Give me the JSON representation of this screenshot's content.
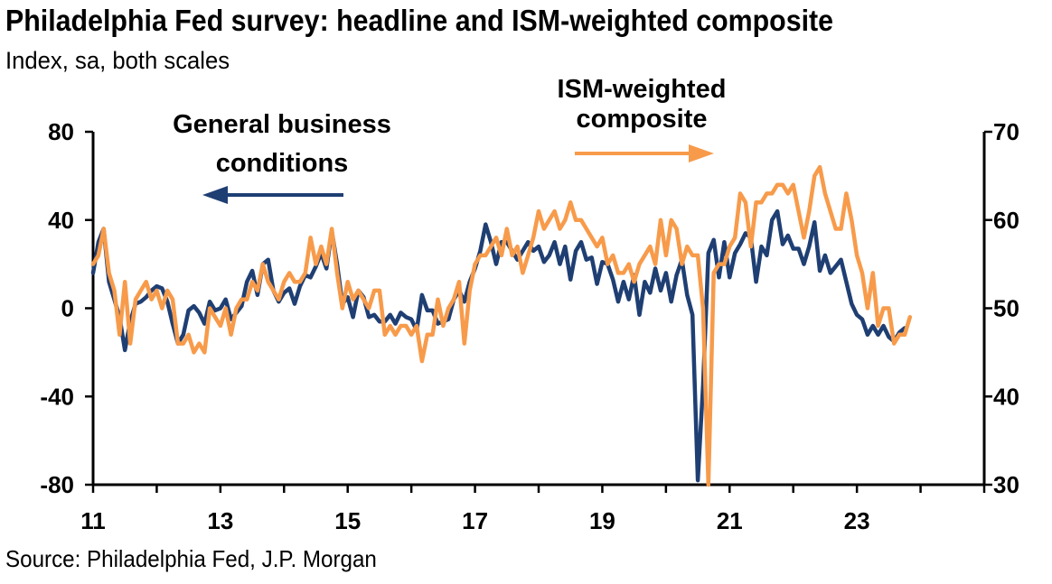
{
  "chart_data": {
    "type": "line",
    "title": "Philadelphia Fed survey: headline and ISM-weighted composite",
    "subtitle": "Index, sa, both scales",
    "source": "Source: Philadelphia Fed, J.P. Morgan",
    "x_tick_labels": [
      "11",
      "13",
      "15",
      "17",
      "19",
      "21",
      "23"
    ],
    "xlim": [
      "2011-01",
      "2024-12"
    ],
    "left_axis": {
      "ylim": [
        -80,
        80
      ],
      "tick_labels": [
        "-80",
        "-40",
        "0",
        "40",
        "80"
      ]
    },
    "right_axis": {
      "ylim": [
        30,
        70
      ],
      "tick_labels": [
        "30",
        "40",
        "50",
        "60",
        "70"
      ]
    },
    "annotations": [
      {
        "lines": [
          "General business",
          "conditions"
        ],
        "arrow": "left",
        "series": "general"
      },
      {
        "lines": [
          "ISM-weighted",
          "composite"
        ],
        "arrow": "right",
        "series": "ism"
      }
    ],
    "grid": false,
    "legend": "none",
    "start_month": "2011-01",
    "series": [
      {
        "name": "General business conditions",
        "axis": "left",
        "color": "#1f3f73",
        "values": [
          16,
          30,
          36,
          12,
          4,
          -4,
          -19,
          -6,
          2,
          3,
          5,
          8,
          10,
          9,
          3,
          -7,
          -16,
          -12,
          -1,
          1,
          -2,
          -7,
          3,
          -1,
          0,
          4,
          -5,
          -2,
          1,
          12,
          17,
          6,
          20,
          22,
          8,
          3,
          7,
          9,
          2,
          10,
          15,
          14,
          19,
          25,
          18,
          35,
          20,
          2,
          5,
          -4,
          8,
          5,
          -4,
          -3,
          -6,
          -6,
          -3,
          -7,
          -2,
          -4,
          -5,
          -10,
          6,
          -1,
          -1,
          -7,
          -6,
          -5,
          4,
          8,
          3,
          12,
          18,
          26,
          38,
          30,
          20,
          30,
          30,
          26,
          22,
          26,
          30,
          26,
          28,
          21,
          24,
          30,
          20,
          28,
          13,
          26,
          30,
          22,
          23,
          11,
          21,
          20,
          13,
          3,
          12,
          4,
          15,
          -3,
          12,
          7,
          18,
          8,
          16,
          3,
          15,
          22,
          6,
          -3,
          -78,
          -35,
          25,
          31,
          14,
          30,
          14,
          25,
          29,
          34,
          32,
          12,
          28,
          24,
          40,
          44,
          29,
          33,
          27,
          27,
          20,
          28,
          39,
          17,
          24,
          16,
          19,
          22,
          12,
          2,
          -3,
          -5,
          -12,
          -8,
          -12,
          -8,
          -13,
          -15,
          -11,
          -9
        ]
      },
      {
        "name": "ISM-weighted composite",
        "axis": "right",
        "color": "#f79b4b",
        "values": [
          55,
          56,
          59,
          54,
          52,
          47,
          53,
          46,
          51,
          52,
          53,
          51,
          52,
          50,
          52,
          51,
          46,
          46,
          47,
          45,
          46,
          45,
          50,
          49,
          48,
          50,
          47,
          50,
          51,
          51,
          53,
          52,
          55,
          53,
          52,
          51,
          53,
          54,
          53,
          53,
          54,
          58,
          55,
          57,
          55,
          59,
          54,
          50,
          53,
          51,
          52,
          51,
          50,
          52,
          52,
          47,
          48,
          47,
          48,
          48,
          47,
          48,
          44,
          47,
          47,
          51,
          48,
          50,
          51,
          53,
          46,
          52,
          55,
          56,
          56,
          57,
          58,
          56,
          59,
          56,
          57,
          54,
          56,
          58,
          61,
          59,
          60,
          61,
          59,
          60,
          62,
          60,
          60,
          59,
          58,
          57,
          58,
          55,
          56,
          54,
          54,
          55,
          53,
          55,
          56,
          57,
          55,
          60,
          56,
          60,
          59,
          55,
          57,
          56,
          56,
          50,
          30,
          54,
          55,
          55,
          57,
          58,
          63,
          62,
          57,
          62,
          62,
          63,
          63,
          64,
          64,
          63,
          64,
          61,
          58,
          61,
          65,
          66,
          63,
          61,
          59,
          59,
          63,
          60,
          56,
          54,
          50,
          54,
          48,
          50,
          50,
          46,
          47,
          47,
          49
        ]
      }
    ]
  }
}
